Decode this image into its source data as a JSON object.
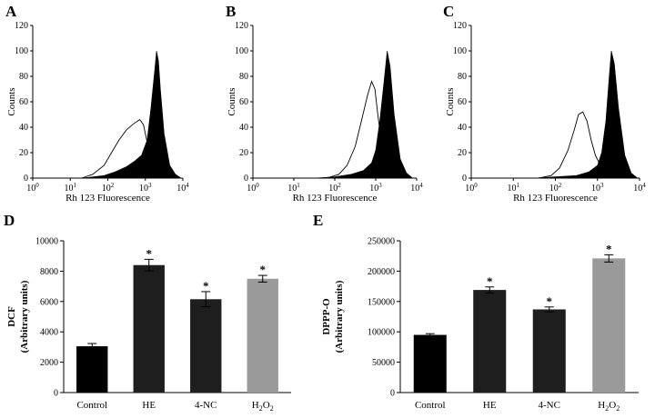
{
  "chart_data": [
    {
      "panel": "A",
      "type": "area",
      "ylabel": "Counts",
      "xlabel": "Rh 123 Fluorescence",
      "x_scale": "log",
      "x_ticks": [
        {
          "base": "10",
          "exp": "0"
        },
        {
          "base": "10",
          "exp": "1"
        },
        {
          "base": "10",
          "exp": "2"
        },
        {
          "base": "10",
          "exp": "3"
        },
        {
          "base": "10",
          "exp": "4"
        }
      ],
      "y_ticks": [
        "0",
        "20",
        "40",
        "60",
        "80",
        "100",
        "120"
      ],
      "ylim": [
        0,
        120
      ],
      "filled": {
        "color": "#000000",
        "x": [
          1.3,
          1.9,
          2.2,
          2.5,
          2.7,
          2.9,
          3.05,
          3.15,
          3.25,
          3.3,
          3.35,
          3.4,
          3.5,
          3.65,
          3.8,
          3.95
        ],
        "y": [
          0,
          2,
          5,
          9,
          13,
          18,
          30,
          55,
          85,
          100,
          92,
          70,
          35,
          10,
          3,
          0
        ]
      },
      "outline": {
        "color": "#000000",
        "x": [
          1.3,
          1.6,
          1.9,
          2.1,
          2.3,
          2.5,
          2.7,
          2.85,
          2.95,
          3.05,
          3.15,
          3.25,
          3.4,
          3.55,
          3.7
        ],
        "y": [
          0,
          3,
          10,
          20,
          30,
          38,
          43,
          46,
          42,
          28,
          15,
          8,
          3,
          1,
          0
        ]
      }
    },
    {
      "panel": "B",
      "type": "area",
      "ylabel": "Counts",
      "xlabel": "Rh 123 Fluorescence",
      "x_scale": "log",
      "x_ticks": [
        {
          "base": "10",
          "exp": "0"
        },
        {
          "base": "10",
          "exp": "1"
        },
        {
          "base": "10",
          "exp": "2"
        },
        {
          "base": "10",
          "exp": "3"
        },
        {
          "base": "10",
          "exp": "4"
        }
      ],
      "y_ticks": [
        "0",
        "20",
        "40",
        "60",
        "80",
        "100",
        "120"
      ],
      "ylim": [
        0,
        120
      ],
      "filled": {
        "color": "#000000",
        "x": [
          1.5,
          2.0,
          2.4,
          2.7,
          2.9,
          3.0,
          3.1,
          3.2,
          3.28,
          3.35,
          3.45,
          3.6,
          3.75,
          3.9
        ],
        "y": [
          0,
          1,
          3,
          6,
          12,
          22,
          45,
          75,
          100,
          88,
          50,
          15,
          4,
          0
        ]
      },
      "outline": {
        "color": "#000000",
        "x": [
          1.8,
          2.1,
          2.3,
          2.5,
          2.65,
          2.8,
          2.9,
          2.98,
          3.05,
          3.15,
          3.25,
          3.4,
          3.6
        ],
        "y": [
          0,
          3,
          10,
          25,
          45,
          65,
          76,
          70,
          50,
          25,
          10,
          3,
          0
        ]
      }
    },
    {
      "panel": "C",
      "type": "area",
      "ylabel": "Counts",
      "xlabel": "Rh 123 Fluorescence",
      "x_scale": "log",
      "x_ticks": [
        {
          "base": "10",
          "exp": "0"
        },
        {
          "base": "10",
          "exp": "1"
        },
        {
          "base": "10",
          "exp": "2"
        },
        {
          "base": "10",
          "exp": "3"
        },
        {
          "base": "10",
          "exp": "4"
        }
      ],
      "y_ticks": [
        "0",
        "20",
        "40",
        "60",
        "80",
        "100",
        "120"
      ],
      "ylim": [
        0,
        120
      ],
      "filled": {
        "color": "#000000",
        "x": [
          1.5,
          2.0,
          2.5,
          2.8,
          3.0,
          3.1,
          3.2,
          3.28,
          3.33,
          3.4,
          3.5,
          3.65,
          3.8,
          3.95
        ],
        "y": [
          0,
          1,
          2,
          5,
          10,
          20,
          45,
          80,
          100,
          90,
          55,
          18,
          4,
          0
        ]
      },
      "outline": {
        "color": "#000000",
        "x": [
          1.6,
          1.9,
          2.1,
          2.3,
          2.45,
          2.55,
          2.65,
          2.75,
          2.85,
          2.95,
          3.1,
          3.3,
          3.5
        ],
        "y": [
          0,
          2,
          8,
          22,
          38,
          50,
          52,
          45,
          30,
          18,
          8,
          2,
          0
        ]
      }
    },
    {
      "panel": "D",
      "type": "bar",
      "ylabel": [
        "DCF",
        "(Arbitrary units)"
      ],
      "categories": [
        {
          "text": "Control",
          "sub": ""
        },
        {
          "text": "HE",
          "sub": ""
        },
        {
          "text": "4-NC",
          "sub": ""
        },
        {
          "text": "H",
          "sub": "2",
          "text2": "O",
          "sub2": "2"
        }
      ],
      "values": [
        3050,
        8400,
        6150,
        7500
      ],
      "errors": [
        180,
        380,
        500,
        220
      ],
      "significant": [
        false,
        true,
        true,
        true
      ],
      "star_label": "*",
      "colors": [
        "#000000",
        "#1e1e1e",
        "#1e1e1e",
        "#9a9a9a"
      ],
      "ylim": [
        0,
        10000
      ],
      "y_ticks": [
        "0",
        "2000",
        "4000",
        "6000",
        "8000",
        "10000"
      ]
    },
    {
      "panel": "E",
      "type": "bar",
      "ylabel": [
        "DPPP-O",
        "(Arbitrary units)"
      ],
      "categories": [
        {
          "text": "Control",
          "sub": ""
        },
        {
          "text": "HE",
          "sub": ""
        },
        {
          "text": "4-NC",
          "sub": ""
        },
        {
          "text": "H",
          "sub": "2",
          "text2": "O",
          "sub2": "2"
        }
      ],
      "values": [
        95000,
        169000,
        137000,
        221000
      ],
      "errors": [
        2000,
        5000,
        4000,
        6000
      ],
      "significant": [
        false,
        true,
        true,
        true
      ],
      "star_label": "*",
      "colors": [
        "#000000",
        "#1e1e1e",
        "#1e1e1e",
        "#9a9a9a"
      ],
      "ylim": [
        0,
        250000
      ],
      "y_ticks": [
        "0",
        "50000",
        "100000",
        "150000",
        "200000",
        "250000"
      ]
    }
  ]
}
